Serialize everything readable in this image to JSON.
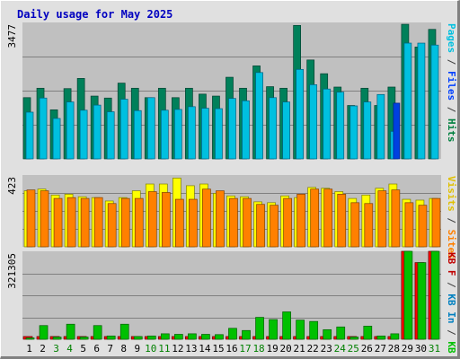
{
  "title": "Daily usage for May 2025",
  "chart_data": [
    {
      "type": "bar",
      "panel": "pages-files-hits",
      "ymax_label": "3477",
      "ylim": [
        0,
        3477
      ],
      "side_legend": [
        {
          "text": "Pages",
          "color": "#00c0e0"
        },
        {
          "text": " / ",
          "color": "#404040"
        },
        {
          "text": "Files",
          "color": "#0040ff"
        },
        {
          "text": " / ",
          "color": "#404040"
        },
        {
          "text": "Hits",
          "color": "#008040"
        }
      ],
      "categories": [
        "1",
        "2",
        "3",
        "4",
        "5",
        "6",
        "7",
        "8",
        "9",
        "10",
        "11",
        "12",
        "13",
        "14",
        "15",
        "16",
        "17",
        "18",
        "19",
        "20",
        "21",
        "22",
        "23",
        "24",
        "25",
        "26",
        "27",
        "28",
        "29",
        "30",
        "31"
      ],
      "series": [
        {
          "name": "Hits",
          "color": "#00805a",
          "values": [
            1560,
            1800,
            1250,
            1790,
            2050,
            1600,
            1550,
            1930,
            1800,
            1560,
            1800,
            1560,
            1800,
            1650,
            1600,
            2080,
            1800,
            2370,
            1840,
            1800,
            3400,
            2520,
            2170,
            1830,
            1360,
            1800,
            1360,
            1830,
            3430,
            2850,
            3300
          ]
        },
        {
          "name": "Files",
          "color": "#00c0e0",
          "values": [
            1190,
            1550,
            1030,
            1450,
            1240,
            1370,
            1200,
            1520,
            1230,
            1560,
            1240,
            1260,
            1330,
            1290,
            1280,
            1540,
            1480,
            2200,
            1560,
            1450,
            2280,
            1890,
            1780,
            1700,
            1350,
            1450,
            1640,
            700,
            2950,
            2950,
            2900
          ]
        },
        {
          "name": "Pages",
          "color": "#0040e0",
          "values": [
            0,
            0,
            0,
            0,
            0,
            0,
            0,
            0,
            0,
            0,
            0,
            0,
            0,
            0,
            0,
            0,
            0,
            0,
            0,
            0,
            0,
            0,
            0,
            0,
            0,
            0,
            0,
            1420,
            0,
            0,
            0
          ]
        }
      ]
    },
    {
      "type": "bar",
      "panel": "visits-sites",
      "ymax_label": "423",
      "ylim": [
        0,
        423
      ],
      "side_legend": [
        {
          "text": "Visits",
          "color": "#e0c000"
        },
        {
          "text": " / ",
          "color": "#404040"
        },
        {
          "text": "Sites",
          "color": "#ff8000"
        }
      ],
      "series": [
        {
          "name": "Visits",
          "color": "#ffff00",
          "values": [
            330,
            340,
            305,
            310,
            295,
            290,
            270,
            290,
            330,
            370,
            370,
            405,
            360,
            370,
            315,
            300,
            295,
            265,
            260,
            300,
            290,
            350,
            345,
            325,
            285,
            305,
            345,
            370,
            280,
            275,
            285
          ]
        },
        {
          "name": "Sites",
          "color": "#ff8000",
          "values": [
            335,
            330,
            285,
            290,
            285,
            290,
            255,
            285,
            285,
            325,
            320,
            280,
            280,
            340,
            330,
            285,
            285,
            250,
            245,
            285,
            310,
            340,
            340,
            310,
            260,
            255,
            330,
            335,
            260,
            245,
            285
          ]
        }
      ]
    },
    {
      "type": "bar",
      "panel": "kbytes",
      "ymax_label": "321305",
      "ylim": [
        0,
        321305
      ],
      "side_legend": [
        {
          "text": "KB F",
          "color": "#c00000"
        },
        {
          "text": " / ",
          "color": "#404040"
        },
        {
          "text": "KB In",
          "color": "#0080c0"
        },
        {
          "text": " / ",
          "color": "#404040"
        },
        {
          "text": "KB Out",
          "color": "#00c000"
        }
      ],
      "series": [
        {
          "name": "KB F",
          "color": "#ff0000",
          "values": [
            10000,
            10000,
            10000,
            10000,
            10000,
            10000,
            10000,
            10000,
            10000,
            10000,
            10000,
            10000,
            10000,
            10000,
            10000,
            10000,
            10000,
            10000,
            10000,
            10000,
            10000,
            10000,
            10000,
            10000,
            10000,
            10000,
            10000,
            10000,
            321305,
            280000,
            321305
          ]
        },
        {
          "name": "KB Out",
          "color": "#00c000",
          "values": [
            5000,
            50000,
            8000,
            55000,
            8000,
            50000,
            12000,
            55000,
            10000,
            12000,
            20000,
            18000,
            20000,
            18000,
            17000,
            40000,
            32000,
            80000,
            72000,
            100000,
            70000,
            65000,
            35000,
            45000,
            8000,
            48000,
            12000,
            20000,
            321305,
            280000,
            321305
          ]
        }
      ]
    }
  ],
  "x_label_colors": {
    "weekday": "#000000",
    "weekend": "#008000"
  },
  "weekend_days": [
    3,
    4,
    10,
    11,
    17,
    18,
    24,
    25,
    31
  ]
}
